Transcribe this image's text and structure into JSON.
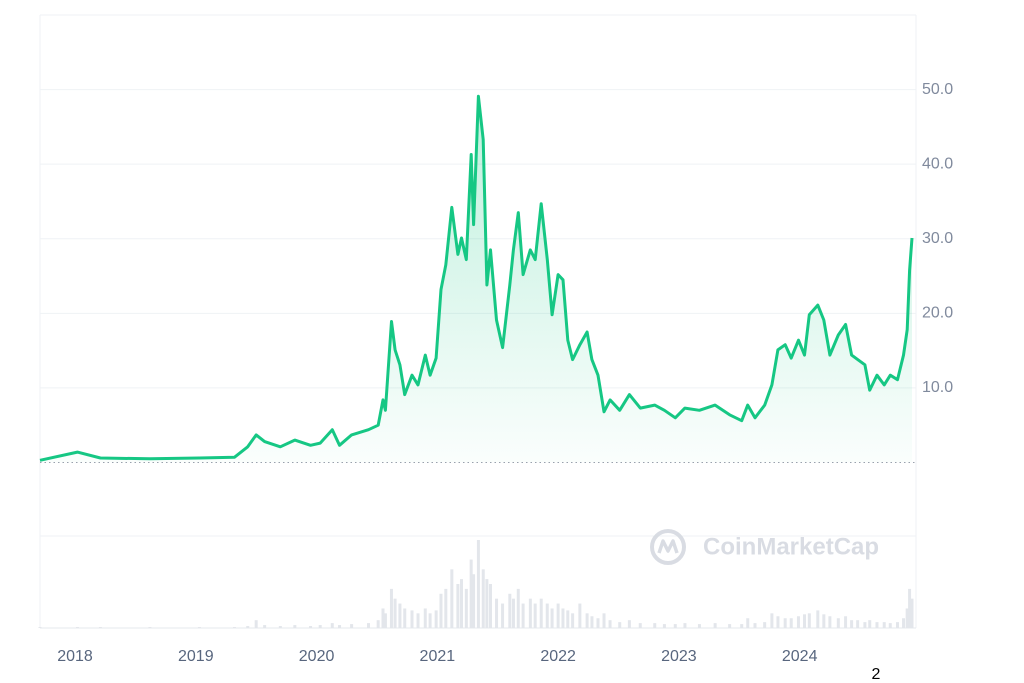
{
  "chart_data": {
    "type": "line",
    "watermark": "CoinMarketCap",
    "page_number": "2",
    "x": [
      2017.71,
      2018.02,
      2018.21,
      2018.62,
      2019.03,
      2019.32,
      2019.43,
      2019.5,
      2019.57,
      2019.7,
      2019.82,
      2019.95,
      2020.03,
      2020.13,
      2020.19,
      2020.29,
      2020.43,
      2020.51,
      2020.55,
      2020.57,
      2020.62,
      2020.65,
      2020.69,
      2020.73,
      2020.79,
      2020.84,
      2020.9,
      2020.94,
      2020.99,
      2021.03,
      2021.07,
      2021.12,
      2021.17,
      2021.2,
      2021.24,
      2021.28,
      2021.3,
      2021.34,
      2021.38,
      2021.41,
      2021.44,
      2021.49,
      2021.54,
      2021.6,
      2021.63,
      2021.67,
      2021.71,
      2021.77,
      2021.81,
      2021.86,
      2021.91,
      2021.95,
      2022.0,
      2022.04,
      2022.08,
      2022.12,
      2022.18,
      2022.24,
      2022.28,
      2022.33,
      2022.38,
      2022.43,
      2022.51,
      2022.59,
      2022.68,
      2022.8,
      2022.88,
      2022.97,
      2023.05,
      2023.17,
      2023.3,
      2023.42,
      2023.52,
      2023.57,
      2023.63,
      2023.71,
      2023.77,
      2023.82,
      2023.88,
      2023.93,
      2023.99,
      2024.04,
      2024.08,
      2024.15,
      2024.2,
      2024.25,
      2024.32,
      2024.38,
      2024.43,
      2024.48,
      2024.54,
      2024.58,
      2024.64,
      2024.7,
      2024.75,
      2024.81,
      2024.86,
      2024.89,
      2024.91,
      2024.93
    ],
    "series": [
      {
        "color": "#16c784",
        "values": [
          0.3,
          1.4,
          0.6,
          0.5,
          0.6,
          0.7,
          2.1,
          3.7,
          2.8,
          2.1,
          3.0,
          2.3,
          2.6,
          4.4,
          2.3,
          3.7,
          4.4,
          5.0,
          8.4,
          7.0,
          18.9,
          15.1,
          13.1,
          9.1,
          11.7,
          10.4,
          14.4,
          11.7,
          14.0,
          23.2,
          26.5,
          34.2,
          27.9,
          30.1,
          27.2,
          41.3,
          31.9,
          49.1,
          43.3,
          23.8,
          28.5,
          19.1,
          15.4,
          23.8,
          28.5,
          33.5,
          25.2,
          28.5,
          27.2,
          34.7,
          27.2,
          19.8,
          25.2,
          24.5,
          16.4,
          13.8,
          15.8,
          17.5,
          13.8,
          11.7,
          6.8,
          8.4,
          7.0,
          9.1,
          7.3,
          7.7,
          7.0,
          6.0,
          7.3,
          7.0,
          7.7,
          6.4,
          5.6,
          7.7,
          6.0,
          7.7,
          10.4,
          15.1,
          15.8,
          14.0,
          16.4,
          14.4,
          19.8,
          21.1,
          19.1,
          14.4,
          17.1,
          18.5,
          14.4,
          13.8,
          13.1,
          9.7,
          11.7,
          10.4,
          11.7,
          11.1,
          14.4,
          17.8,
          25.8,
          30.1
        ]
      }
    ],
    "volume": [
      1,
      1,
      1,
      1,
      1,
      1,
      2,
      8,
      3,
      2,
      3,
      2,
      3,
      5,
      3,
      4,
      5,
      8,
      20,
      15,
      40,
      30,
      25,
      20,
      18,
      15,
      20,
      15,
      18,
      35,
      40,
      60,
      45,
      50,
      40,
      70,
      55,
      90,
      60,
      50,
      45,
      30,
      25,
      35,
      30,
      40,
      25,
      30,
      25,
      30,
      25,
      20,
      25,
      20,
      18,
      15,
      25,
      15,
      12,
      10,
      15,
      8,
      6,
      8,
      5,
      5,
      4,
      4,
      5,
      4,
      5,
      4,
      4,
      10,
      5,
      6,
      15,
      12,
      10,
      10,
      12,
      14,
      15,
      18,
      14,
      12,
      10,
      12,
      8,
      8,
      6,
      8,
      6,
      6,
      5,
      6,
      10,
      20,
      40,
      30
    ],
    "xlim": [
      2017.71,
      2024.93
    ],
    "xticks": [
      2018,
      2019,
      2020,
      2021,
      2022,
      2023,
      2024
    ],
    "ylim": [
      0,
      60
    ],
    "yticks": [
      {
        "value": 10,
        "label": "10.0"
      },
      {
        "value": 20,
        "label": "20.0"
      },
      {
        "value": 30,
        "label": "30.0"
      },
      {
        "value": 40,
        "label": "40.0"
      },
      {
        "value": 50,
        "label": "50.0"
      }
    ],
    "grid": true
  }
}
